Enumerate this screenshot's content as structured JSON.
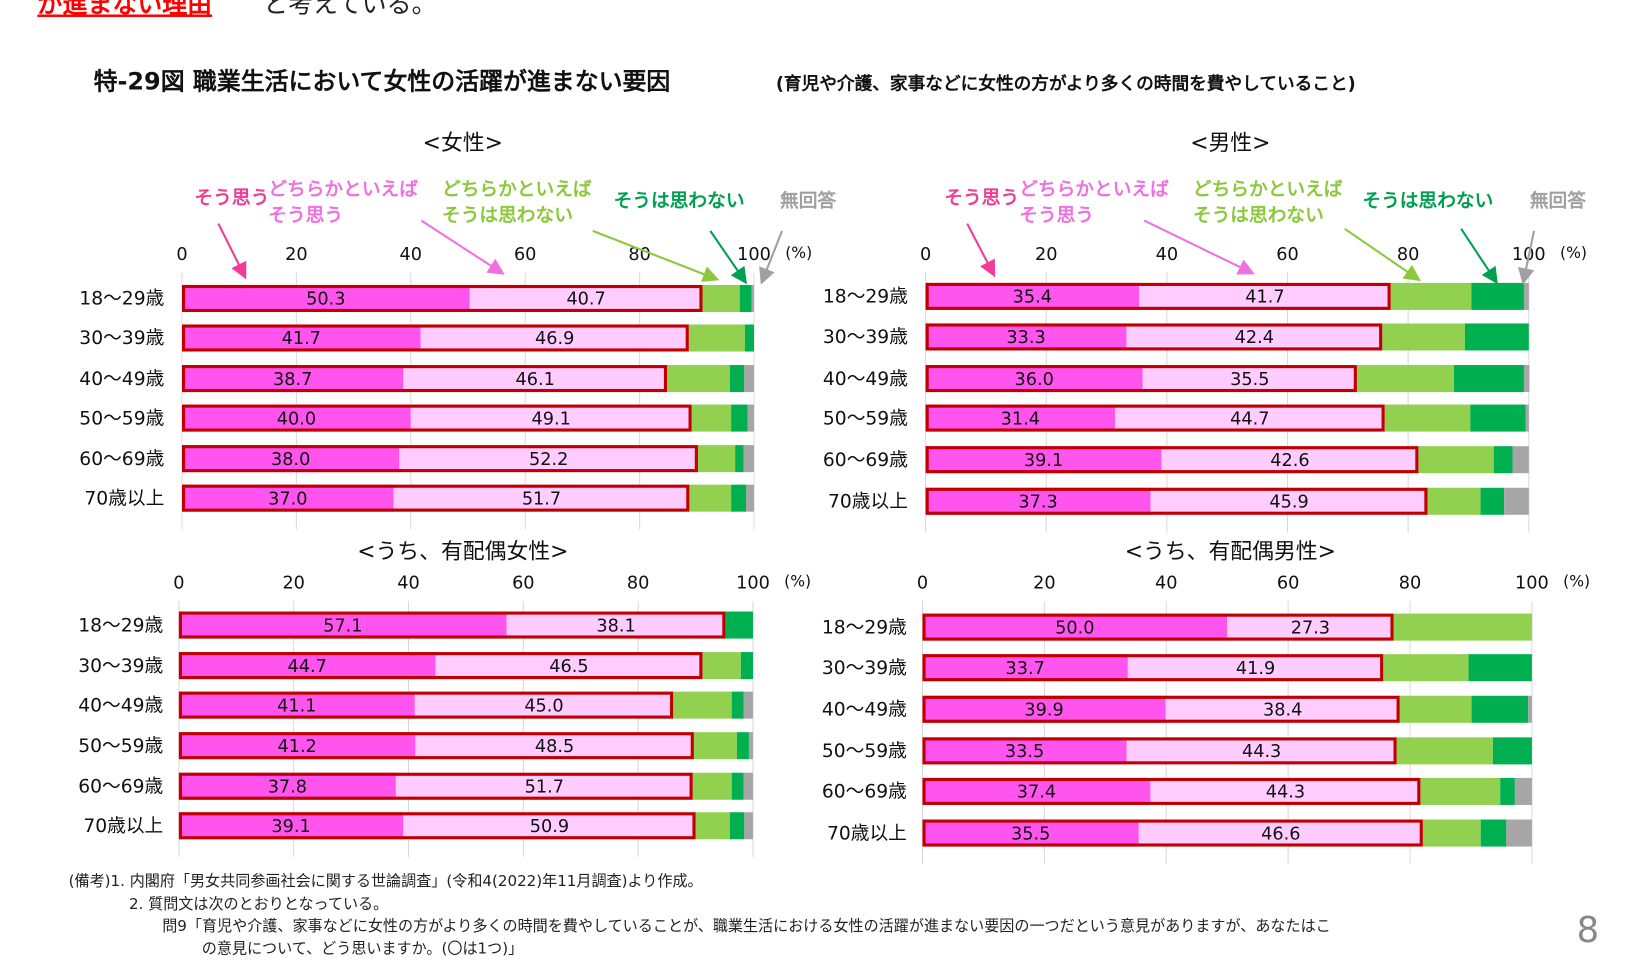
{
  "header": {
    "lead_red": "が進まない理由",
    "lead_rest": "と考えている。"
  },
  "figure": {
    "title": "特-29図 職業生活において女性の活躍が進まない要因",
    "subtitle": "(育児や介護、家事などに女性の方がより多くの時間を費やしていること)"
  },
  "legend": [
    {
      "lines": [
        "そう思う"
      ],
      "color": "#f03c96"
    },
    {
      "lines": [
        "どちらかといえば",
        "そう思う"
      ],
      "color": "#f070e0"
    },
    {
      "lines": [
        "どちらかといえば",
        "そうは思わない"
      ],
      "color": "#8cc83c"
    },
    {
      "lines": [
        "そうは思わない"
      ],
      "color": "#00a050"
    },
    {
      "lines": [
        "無回答"
      ],
      "color": "#a0a0a0"
    }
  ],
  "colors": {
    "strongly_agree": "#ff55ee",
    "somewhat_agree": "#ffccff",
    "somewhat_disagree": "#92d050",
    "disagree": "#00b050",
    "no_answer": "#a6a6a6",
    "outline": "#c00000"
  },
  "chart_data": [
    {
      "type": "bar",
      "orientation": "horizontal",
      "stacked": true,
      "title": "<女性>",
      "xlim": [
        0,
        100
      ],
      "ticks": [
        "0",
        "20",
        "40",
        "60",
        "80",
        "100"
      ],
      "unit": "(%)",
      "categories": [
        "18〜29歳",
        "30〜39歳",
        "40〜49歳",
        "50〜59歳",
        "60〜69歳",
        "70歳以上"
      ],
      "series": [
        {
          "name": "そう思う",
          "values": [
            50.3,
            41.7,
            38.7,
            40.0,
            38.0,
            37.0
          ]
        },
        {
          "name": "どちらかといえばそう思う",
          "values": [
            40.7,
            46.9,
            46.1,
            49.1,
            52.2,
            51.7
          ]
        },
        {
          "name": "どちらかといえばそうは思わない",
          "values": [
            6.5,
            9.8,
            11.0,
            6.9,
            6.5,
            7.3
          ]
        },
        {
          "name": "そうは思わない",
          "values": [
            2.1,
            1.6,
            2.5,
            2.9,
            1.5,
            2.6
          ]
        },
        {
          "name": "無回答",
          "values": [
            0.4,
            0.0,
            1.7,
            1.1,
            1.8,
            1.4
          ]
        }
      ]
    },
    {
      "type": "bar",
      "orientation": "horizontal",
      "stacked": true,
      "title": "<男性>",
      "xlim": [
        0,
        100
      ],
      "ticks": [
        "0",
        "20",
        "40",
        "60",
        "80",
        "100"
      ],
      "unit": "(%)",
      "categories": [
        "18〜29歳",
        "30〜39歳",
        "40〜49歳",
        "50〜59歳",
        "60〜69歳",
        "70歳以上"
      ],
      "series": [
        {
          "name": "そう思う",
          "values": [
            35.4,
            33.3,
            36.0,
            31.4,
            39.1,
            37.3
          ]
        },
        {
          "name": "どちらかといえばそう思う",
          "values": [
            41.7,
            42.4,
            35.5,
            44.7,
            42.6,
            45.9
          ]
        },
        {
          "name": "どちらかといえばそうは思わない",
          "values": [
            13.4,
            13.7,
            16.1,
            14.2,
            12.5,
            8.8
          ]
        },
        {
          "name": "そうは思わない",
          "values": [
            8.7,
            10.6,
            11.6,
            9.2,
            3.1,
            3.9
          ]
        },
        {
          "name": "無回答",
          "values": [
            0.8,
            0.0,
            0.9,
            0.5,
            2.7,
            4.1
          ]
        }
      ]
    },
    {
      "type": "bar",
      "orientation": "horizontal",
      "stacked": true,
      "title": "<うち、有配偶女性>",
      "xlim": [
        0,
        100
      ],
      "ticks": [
        "0",
        "20",
        "40",
        "60",
        "80",
        "100"
      ],
      "unit": "(%)",
      "categories": [
        "18〜29歳",
        "30〜39歳",
        "40〜49歳",
        "50〜59歳",
        "60〜69歳",
        "70歳以上"
      ],
      "series": [
        {
          "name": "そう思う",
          "values": [
            57.1,
            44.7,
            41.1,
            41.2,
            37.8,
            39.1
          ]
        },
        {
          "name": "どちらかといえばそう思う",
          "values": [
            38.1,
            46.5,
            45.0,
            48.5,
            51.7,
            50.9
          ]
        },
        {
          "name": "どちらかといえばそうは思わない",
          "values": [
            0.0,
            6.7,
            10.2,
            7.5,
            6.8,
            6.0
          ]
        },
        {
          "name": "そうは思わない",
          "values": [
            4.8,
            2.1,
            2.1,
            2.1,
            2.1,
            2.5
          ]
        },
        {
          "name": "無回答",
          "values": [
            0.0,
            0.0,
            1.6,
            0.7,
            1.6,
            1.5
          ]
        }
      ]
    },
    {
      "type": "bar",
      "orientation": "horizontal",
      "stacked": true,
      "title": "<うち、有配偶男性>",
      "xlim": [
        0,
        100
      ],
      "ticks": [
        "0",
        "20",
        "40",
        "60",
        "80",
        "100"
      ],
      "unit": "(%)",
      "categories": [
        "18〜29歳",
        "30〜39歳",
        "40〜49歳",
        "50〜59歳",
        "60〜69歳",
        "70歳以上"
      ],
      "series": [
        {
          "name": "そう思う",
          "values": [
            50.0,
            33.7,
            39.9,
            33.5,
            37.4,
            35.5
          ]
        },
        {
          "name": "どちらかといえばそう思う",
          "values": [
            27.3,
            41.9,
            38.4,
            44.3,
            44.3,
            46.6
          ]
        },
        {
          "name": "どちらかといえばそうは思わない",
          "values": [
            22.7,
            14.0,
            11.8,
            15.8,
            13.1,
            9.5
          ]
        },
        {
          "name": "そうは思わない",
          "values": [
            0.0,
            10.4,
            9.3,
            6.4,
            2.4,
            4.2
          ]
        },
        {
          "name": "無回答",
          "values": [
            0.0,
            0.0,
            0.6,
            0.0,
            2.8,
            4.2
          ]
        }
      ]
    }
  ],
  "notes": [
    "(備考)1. 内閣府「男女共同参画社会に関する世論調査」(令和4(2022)年11月調査)より作成。",
    "2. 質問文は次のとおりとなっている。",
    "問9「育児や介護、家事などに女性の方がより多くの時間を費やしていることが、職業生活における女性の活躍が進まない要因の一つだという意見がありますが、あなたはこ",
    "の意見について、どう思いますか。(〇は1つ)」"
  ],
  "page_number": "8"
}
